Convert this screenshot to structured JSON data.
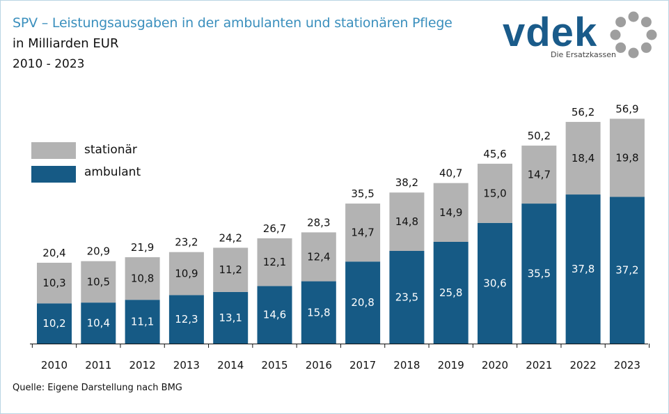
{
  "header": {
    "title": "SPV – Leistungsausgaben in der ambulanten und stationären Pflege",
    "subtitle": "in Milliarden EUR",
    "period": "2010 - 2023"
  },
  "logo": {
    "text": "vdek",
    "tagline": "Die Ersatzkassen",
    "color": "#1a5b8a",
    "ring_color": "#9e9e9e"
  },
  "source": "Quelle: Eigene Darstellung nach BMG",
  "chart_data": {
    "type": "bar",
    "stacked": true,
    "categories": [
      "2010",
      "2011",
      "2012",
      "2013",
      "2014",
      "2015",
      "2016",
      "2017",
      "2018",
      "2019",
      "2020",
      "2021",
      "2022",
      "2023"
    ],
    "series": [
      {
        "name": "ambulant",
        "color": "#165a85",
        "values": [
          10.2,
          10.4,
          11.1,
          12.3,
          13.1,
          14.6,
          15.8,
          20.8,
          23.5,
          25.8,
          30.6,
          35.5,
          37.8,
          37.2
        ],
        "labels": [
          "10,2",
          "10,4",
          "11,1",
          "12,3",
          "13,1",
          "14,6",
          "15,8",
          "20,8",
          "23,5",
          "25,8",
          "30,6",
          "35,5",
          "37,8",
          "37,2"
        ]
      },
      {
        "name": "stationär",
        "color": "#b3b3b3",
        "values": [
          10.3,
          10.5,
          10.8,
          10.9,
          11.2,
          12.1,
          12.4,
          14.7,
          14.8,
          14.9,
          15.0,
          14.7,
          18.4,
          19.8
        ],
        "labels": [
          "10,3",
          "10,5",
          "10,8",
          "10,9",
          "11,2",
          "12,1",
          "12,4",
          "14,7",
          "14,8",
          "14,9",
          "15,0",
          "14,7",
          "18,4",
          "19,8"
        ]
      }
    ],
    "totals": [
      20.4,
      20.9,
      21.9,
      23.2,
      24.2,
      26.7,
      28.3,
      35.5,
      38.2,
      40.7,
      45.6,
      50.2,
      56.2,
      56.9
    ],
    "total_labels": [
      "20,4",
      "20,9",
      "21,9",
      "23,2",
      "24,2",
      "26,7",
      "28,3",
      "35,5",
      "38,2",
      "40,7",
      "45,6",
      "50,2",
      "56,2",
      "56,9"
    ],
    "ylim": [
      0,
      60
    ],
    "legend_position": "top-left",
    "grid": false
  }
}
